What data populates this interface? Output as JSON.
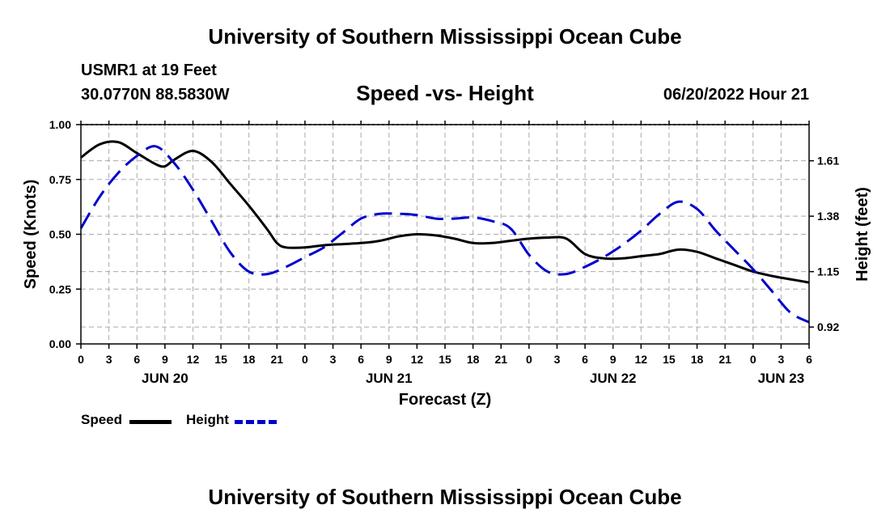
{
  "header": {
    "title": "University of Southern Mississippi Ocean Cube",
    "station": "USMR1 at 19 Feet",
    "coords": "30.0770N  88.5830W",
    "datetime": "06/20/2022 Hour 21",
    "footer_title": "University of Southern Mississippi Ocean Cube"
  },
  "legend": {
    "speed_label": "Speed",
    "height_label": "Height"
  },
  "colors": {
    "speed": "#000000",
    "height": "#0000cc",
    "grid": "#aaaaaa"
  },
  "chart_data": {
    "type": "line",
    "title": "Speed -vs- Height",
    "xlabel": "Forecast (Z)",
    "ylabel": "Speed (Knots)",
    "ylabel_right": "Height (feet)",
    "xlim": [
      0,
      78
    ],
    "ylim": [
      0,
      1.0
    ],
    "ylim_right": [
      0.85,
      1.76
    ],
    "grid": true,
    "legend_position": "bottom-left",
    "x_ticks": [
      0,
      3,
      6,
      9,
      12,
      15,
      18,
      21,
      24,
      27,
      30,
      33,
      36,
      39,
      42,
      45,
      48,
      51,
      54,
      57,
      60,
      63,
      66,
      69,
      72,
      75,
      78
    ],
    "x_tick_labels": [
      "0",
      "3",
      "6",
      "9",
      "12",
      "15",
      "18",
      "21",
      "0",
      "3",
      "6",
      "9",
      "12",
      "15",
      "18",
      "21",
      "0",
      "3",
      "6",
      "9",
      "12",
      "15",
      "18",
      "21",
      "0",
      "3",
      "6"
    ],
    "day_ticks": [
      9,
      33,
      57,
      75
    ],
    "day_labels": [
      "JUN 20",
      "JUN 21",
      "JUN 22",
      "JUN 23"
    ],
    "y_ticks": [
      0.0,
      0.25,
      0.5,
      0.75,
      1.0
    ],
    "y_tick_labels": [
      "0.00",
      "0.25",
      "0.50",
      "0.75",
      "1.00"
    ],
    "y_right_ticks": [
      0.92,
      1.15,
      1.38,
      1.61
    ],
    "y_right_tick_labels": [
      "0.92",
      "1.15",
      "1.38",
      "1.61"
    ],
    "series": [
      {
        "name": "Speed",
        "axis": "left",
        "x": [
          0,
          2,
          4,
          6,
          8,
          9,
          10,
          12,
          14,
          16,
          18,
          20,
          21,
          22,
          24,
          26,
          28,
          30,
          32,
          34,
          36,
          38,
          40,
          42,
          44,
          46,
          48,
          50,
          52,
          54,
          56,
          58,
          60,
          62,
          64,
          66,
          68,
          70,
          72,
          74,
          76,
          78
        ],
        "values": [
          0.85,
          0.91,
          0.92,
          0.87,
          0.82,
          0.81,
          0.84,
          0.88,
          0.83,
          0.73,
          0.63,
          0.52,
          0.46,
          0.44,
          0.44,
          0.45,
          0.455,
          0.46,
          0.47,
          0.49,
          0.5,
          0.495,
          0.48,
          0.46,
          0.46,
          0.47,
          0.48,
          0.485,
          0.48,
          0.41,
          0.39,
          0.39,
          0.4,
          0.41,
          0.43,
          0.42,
          0.39,
          0.36,
          0.33,
          0.31,
          0.295,
          0.28
        ]
      },
      {
        "name": "Height",
        "axis": "right",
        "x": [
          0,
          2,
          4,
          6,
          8,
          10,
          12,
          14,
          16,
          18,
          20,
          22,
          24,
          26,
          28,
          30,
          32,
          34,
          36,
          38,
          40,
          42,
          44,
          46,
          48,
          50,
          52,
          54,
          56,
          58,
          60,
          62,
          64,
          66,
          68,
          70,
          72,
          74,
          76,
          78
        ],
        "values": [
          1.33,
          1.46,
          1.56,
          1.63,
          1.67,
          1.6,
          1.49,
          1.36,
          1.23,
          1.15,
          1.14,
          1.17,
          1.21,
          1.25,
          1.31,
          1.37,
          1.39,
          1.39,
          1.385,
          1.37,
          1.37,
          1.375,
          1.36,
          1.33,
          1.22,
          1.15,
          1.14,
          1.17,
          1.21,
          1.26,
          1.32,
          1.39,
          1.44,
          1.41,
          1.32,
          1.24,
          1.16,
          1.07,
          0.98,
          0.94
        ]
      }
    ]
  }
}
